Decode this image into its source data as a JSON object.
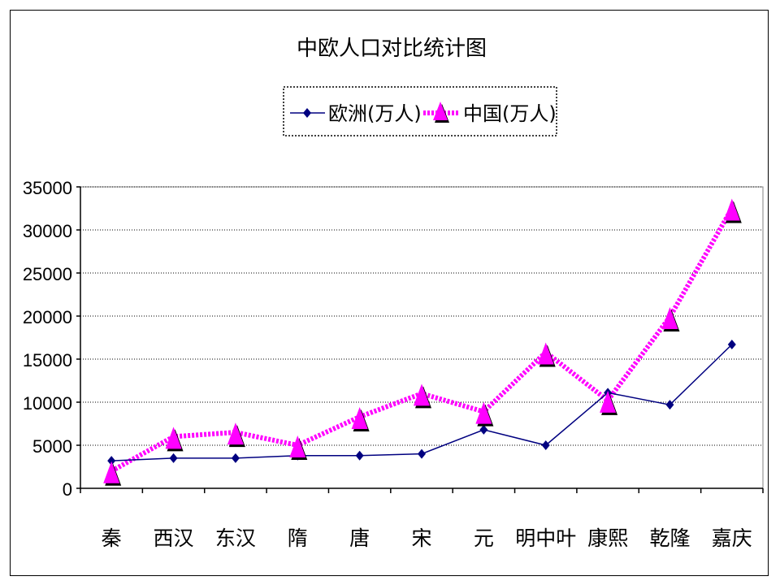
{
  "chart_data": {
    "type": "line",
    "title": "中欧人口对比统计图",
    "categories": [
      "秦",
      "西汉",
      "东汉",
      "隋",
      "唐",
      "宋",
      "元",
      "明中叶",
      "康熙",
      "乾隆",
      "嘉庆"
    ],
    "series": [
      {
        "name": "欧洲(万人)",
        "color": "#000080",
        "marker": "diamond",
        "values": [
          3200,
          3500,
          3500,
          3800,
          3800,
          4000,
          6800,
          5000,
          11100,
          9700,
          16700
        ]
      },
      {
        "name": "中国(万人)",
        "color": "#ff00ff",
        "marker": "triangle",
        "values": [
          2000,
          6000,
          6500,
          5000,
          8300,
          11000,
          8900,
          15800,
          10200,
          19900,
          32500
        ]
      }
    ],
    "ylim": [
      0,
      35000
    ],
    "yticks": [
      0,
      5000,
      10000,
      15000,
      20000,
      25000,
      30000,
      35000
    ],
    "grid": true,
    "legend_position": "top"
  }
}
